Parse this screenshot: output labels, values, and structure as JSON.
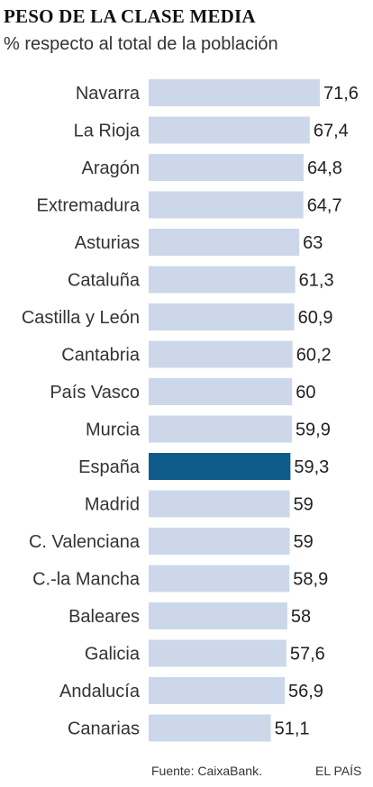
{
  "title": "PESO DE LA CLASE MEDIA",
  "subtitle": "% respecto al total de la población",
  "footer": {
    "source": "Fuente: CaixaBank.",
    "brand": "EL PAÍS"
  },
  "colors": {
    "bar": "#ccd8ea",
    "highlight": "#0e5c8a",
    "text": "#222222"
  },
  "chart_data": {
    "type": "bar",
    "orientation": "horizontal",
    "title": "PESO DE LA CLASE MEDIA",
    "subtitle": "% respecto al total de la población",
    "highlight": "España",
    "categories": [
      "Navarra",
      "La Rioja",
      "Aragón",
      "Extremadura",
      "Asturias",
      "Cataluña",
      "Castilla y León",
      "Cantabria",
      "País Vasco",
      "Murcia",
      "España",
      "Madrid",
      "C. Valenciana",
      "C.-la Mancha",
      "Baleares",
      "Galicia",
      "Andalucía",
      "Canarias"
    ],
    "values": [
      71.6,
      67.4,
      64.8,
      64.7,
      63,
      61.3,
      60.9,
      60.2,
      60,
      59.9,
      59.3,
      59,
      59,
      58.9,
      58,
      57.6,
      56.9,
      51.1
    ],
    "value_labels": [
      "71,6",
      "67,4",
      "64,8",
      "64,7",
      "63",
      "61,3",
      "60,9",
      "60,2",
      "60",
      "59,9",
      "59,3",
      "59",
      "59",
      "58,9",
      "58",
      "57,6",
      "56,9",
      "51,1"
    ],
    "xlim": [
      0,
      71.6
    ],
    "grid": false,
    "legend": "none"
  }
}
